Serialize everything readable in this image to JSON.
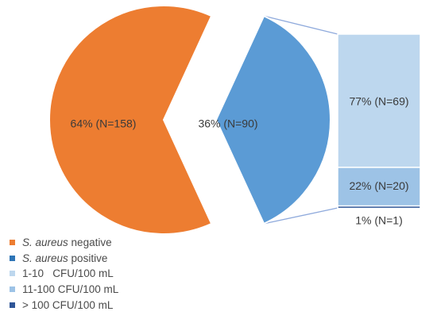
{
  "chart_data": {
    "type": "bar-of-pie",
    "pie": {
      "slices": [
        {
          "label": "64% (N=158)",
          "value": 158,
          "percent": 64,
          "color": "#ED7D31"
        },
        {
          "label": "36% (N=90)",
          "value": 90,
          "percent": 36,
          "color": "#5B9BD5"
        }
      ]
    },
    "bar": {
      "breakdown_of": "S. aureus positive",
      "segments": [
        {
          "label": "77% (N=69)",
          "value": 69,
          "percent": 77,
          "color": "#BDD7EE"
        },
        {
          "label": "22% (N=20)",
          "value": 20,
          "percent": 22,
          "color": "#9DC3E6"
        },
        {
          "label": "1% (N=1)",
          "value": 1,
          "percent": 1,
          "color": "#2F5597"
        }
      ]
    },
    "legend": {
      "placement": "bottom-left",
      "items": [
        {
          "italic": "S. aureus",
          "text": " negative",
          "color": "#ED7D31"
        },
        {
          "italic": "S. aureus",
          "text": " positive",
          "color": "#2E75B6"
        },
        {
          "italic": "",
          "text": "1-10   CFU/100 mL",
          "color": "#BDD7EE"
        },
        {
          "italic": "",
          "text": "11-100 CFU/100 mL",
          "color": "#9DC3E6"
        },
        {
          "italic": "",
          "text": "> 100 CFU/100 mL",
          "color": "#2F5597"
        }
      ]
    }
  }
}
